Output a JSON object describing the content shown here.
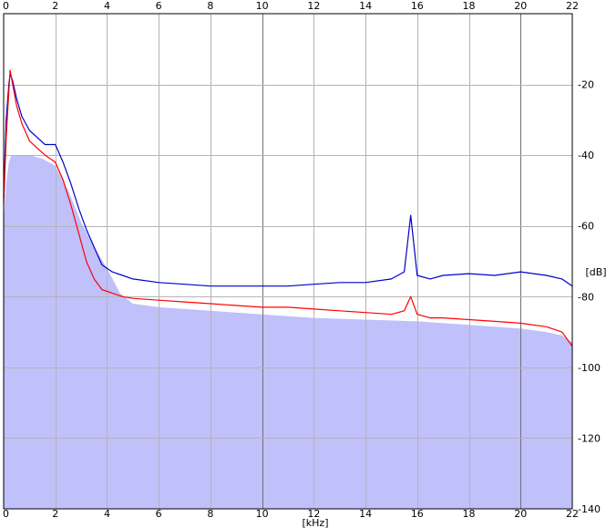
{
  "chart_data": {
    "type": "area",
    "xlabel": "[kHz]",
    "ylabel": "[dB]",
    "xlim": [
      0,
      22
    ],
    "ylim": [
      -140,
      0
    ],
    "x_ticks": [
      0,
      2,
      4,
      6,
      8,
      10,
      12,
      14,
      16,
      18,
      20,
      22
    ],
    "y_ticks": [
      -20,
      -40,
      -60,
      -80,
      -100,
      -120,
      -140
    ],
    "x_tick_labels_top": [
      "0",
      "2",
      "4",
      "6",
      "8",
      "10",
      "12",
      "14",
      "16",
      "18",
      "20",
      "22"
    ],
    "x_tick_labels_bottom": [
      "0",
      "2",
      "4",
      "6",
      "8",
      "10",
      "12",
      "14",
      "16",
      "18",
      "20",
      "22"
    ],
    "y_tick_labels": [
      "-20",
      "-40",
      "-60",
      "-80",
      "-100",
      "-120",
      "-140"
    ],
    "grid": true,
    "series": [
      {
        "color": "#0000cc",
        "style": "line",
        "x": [
          0,
          0.1,
          0.2,
          0.25,
          0.35,
          0.5,
          0.7,
          1.0,
          1.3,
          1.6,
          2.0,
          2.3,
          2.6,
          2.9,
          3.2,
          3.5,
          3.8,
          4.2,
          4.6,
          5.0,
          6.0,
          7.0,
          8.0,
          9.0,
          10.0,
          11.0,
          12.0,
          13.0,
          14.0,
          15.0,
          15.5,
          15.75,
          16.0,
          16.5,
          17.0,
          18.0,
          19.0,
          20.0,
          21.0,
          21.6,
          22.0
        ],
        "y": [
          -52,
          -30,
          -20,
          -17,
          -19,
          -24,
          -29,
          -33,
          -35,
          -37,
          -37,
          -42,
          -48,
          -55,
          -61,
          -66,
          -71,
          -73,
          -74,
          -75,
          -76,
          -76.5,
          -77,
          -77,
          -77,
          -77,
          -76.5,
          -76,
          -76,
          -75,
          -73,
          -57,
          -74,
          -75,
          -74,
          -73.5,
          -74,
          -73,
          -74,
          -75,
          -77
        ]
      },
      {
        "color": "#ff0000",
        "style": "line",
        "x": [
          0,
          0.1,
          0.2,
          0.25,
          0.35,
          0.5,
          0.7,
          1.0,
          1.3,
          1.6,
          2.0,
          2.3,
          2.6,
          2.9,
          3.2,
          3.5,
          3.8,
          4.2,
          4.6,
          5.0,
          6.0,
          7.0,
          8.0,
          9.0,
          10.0,
          11.0,
          12.0,
          13.0,
          14.0,
          15.0,
          15.5,
          15.75,
          16.0,
          16.5,
          17.0,
          18.0,
          19.0,
          20.0,
          21.0,
          21.6,
          22.0
        ],
        "y": [
          -54,
          -35,
          -22,
          -16,
          -20,
          -26,
          -31,
          -36,
          -38,
          -40,
          -42,
          -47,
          -54,
          -62,
          -70,
          -75,
          -78,
          -79,
          -80,
          -80.5,
          -81,
          -81.5,
          -82,
          -82.5,
          -83,
          -83,
          -83.5,
          -84,
          -84.5,
          -85,
          -84,
          -80,
          -85,
          -86,
          -86,
          -86.5,
          -87,
          -87.5,
          -88.5,
          -90,
          -94
        ]
      },
      {
        "color": "#c0c0fa",
        "style": "filled-area",
        "x": [
          0,
          0.1,
          0.2,
          0.3,
          0.5,
          1.0,
          1.5,
          2.0,
          2.5,
          3.0,
          3.5,
          4.0,
          4.5,
          5.0,
          6.0,
          8.0,
          10.0,
          12.0,
          14.0,
          16.0,
          18.0,
          20.0,
          21.0,
          21.6,
          22.0
        ],
        "y": [
          -58,
          -48,
          -42,
          -40,
          -40,
          -40,
          -41,
          -43,
          -50,
          -59,
          -66,
          -72,
          -79,
          -82,
          -83,
          -84,
          -85,
          -86,
          -86.5,
          -87,
          -88,
          -89,
          -90,
          -91,
          -93
        ]
      }
    ]
  }
}
